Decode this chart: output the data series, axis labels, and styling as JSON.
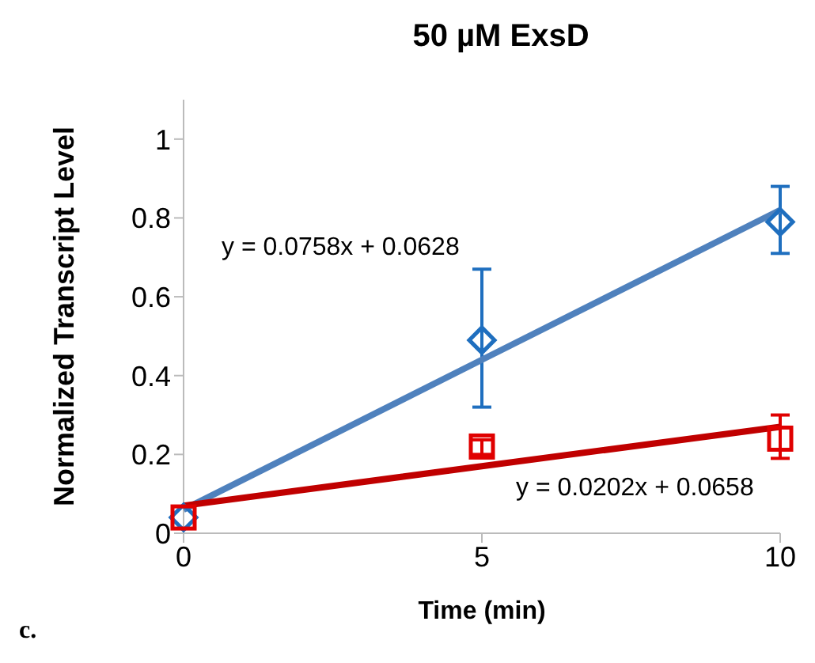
{
  "chart_data": {
    "type": "scatter",
    "title": "50 µM ExsD",
    "xlabel": "Time (min)",
    "ylabel": "Normalized Transcript Level",
    "x": [
      0,
      5,
      10
    ],
    "xlim": [
      0,
      10
    ],
    "xticks": [
      0,
      5,
      10
    ],
    "ylim": [
      0,
      1.1
    ],
    "yticks": [
      0,
      0.2,
      0.4,
      0.6,
      0.8,
      1
    ],
    "grid": false,
    "legend": false,
    "series": [
      {
        "color": "#1f6fbf",
        "marker": "diamond",
        "values": [
          0.04,
          0.49,
          0.79
        ],
        "errors": [
          null,
          [
            0.32,
            0.67
          ],
          [
            0.71,
            0.88
          ]
        ]
      },
      {
        "color": "#e00000",
        "marker": "square",
        "values": [
          0.04,
          0.22,
          0.24
        ],
        "errors": [
          null,
          [
            0.2,
            0.237
          ],
          [
            0.19,
            0.3
          ]
        ]
      },
      {
        "type": "line",
        "color": "#4f81bd",
        "values": [
          0.06,
          0.44,
          0.82
        ]
      },
      {
        "type": "line",
        "color": "#c00000",
        "values": [
          0.07,
          0.17,
          0.27
        ]
      }
    ],
    "annotations": [
      "y = 0.0758x + 0.0628",
      "y = 0.0202x + 0.0658",
      "c."
    ]
  }
}
